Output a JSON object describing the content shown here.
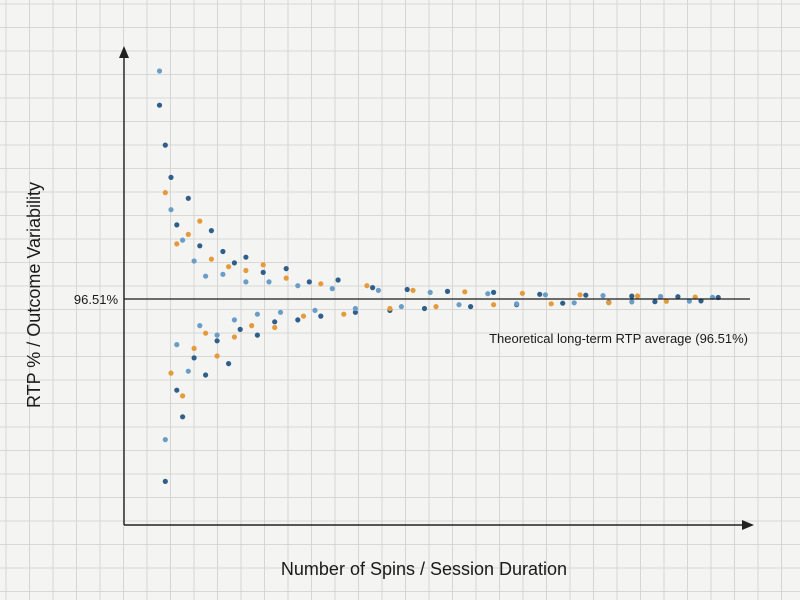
{
  "chart_data": {
    "type": "scatter",
    "title": "",
    "xlabel": "Number of Spins / Session Duration",
    "ylabel": "RTP % / Outcome Variability",
    "reference_line": {
      "y": 96.51,
      "tick_label": "96.51%",
      "annotation": "Theoretical long-term RTP average (96.51%)"
    },
    "x_tick_labels": false,
    "grid": true,
    "background": "graph-paper",
    "series_colors": [
      "#2f5f8a",
      "#e59a3c",
      "#6b9ec7"
    ],
    "pattern": "funnel: outcome spread narrows toward the long-term RTP as the number of spins increases",
    "series": [
      {
        "color": "#2f5f8a",
        "points": [
          [
            0.02,
            10.2
          ],
          [
            0.03,
            8.1
          ],
          [
            0.03,
            -9.6
          ],
          [
            0.04,
            6.4
          ],
          [
            0.05,
            -4.8
          ],
          [
            0.05,
            3.9
          ],
          [
            0.06,
            -6.2
          ],
          [
            0.07,
            5.3
          ],
          [
            0.08,
            -3.1
          ],
          [
            0.09,
            2.8
          ],
          [
            0.1,
            -4.0
          ],
          [
            0.11,
            3.6
          ],
          [
            0.12,
            -2.2
          ],
          [
            0.13,
            2.5
          ],
          [
            0.14,
            -3.4
          ],
          [
            0.15,
            1.9
          ],
          [
            0.16,
            -1.6
          ],
          [
            0.17,
            2.2
          ],
          [
            0.19,
            -1.9
          ],
          [
            0.2,
            1.4
          ],
          [
            0.22,
            -1.2
          ],
          [
            0.24,
            1.6
          ],
          [
            0.26,
            -1.1
          ],
          [
            0.28,
            0.9
          ],
          [
            0.3,
            -0.9
          ],
          [
            0.33,
            1.0
          ],
          [
            0.36,
            -0.7
          ],
          [
            0.39,
            0.6
          ],
          [
            0.42,
            -0.6
          ],
          [
            0.45,
            0.5
          ],
          [
            0.48,
            -0.5
          ],
          [
            0.52,
            0.4
          ],
          [
            0.56,
            -0.4
          ],
          [
            0.6,
            0.35
          ],
          [
            0.64,
            -0.3
          ],
          [
            0.68,
            0.25
          ],
          [
            0.72,
            -0.22
          ],
          [
            0.76,
            0.2
          ],
          [
            0.8,
            -0.18
          ],
          [
            0.84,
            0.15
          ],
          [
            0.88,
            -0.14
          ],
          [
            0.92,
            0.12
          ],
          [
            0.96,
            -0.1
          ],
          [
            0.99,
            0.08
          ]
        ]
      },
      {
        "color": "#e59a3c",
        "points": [
          [
            0.03,
            5.6
          ],
          [
            0.04,
            -3.9
          ],
          [
            0.05,
            2.9
          ],
          [
            0.06,
            -5.1
          ],
          [
            0.07,
            3.4
          ],
          [
            0.08,
            -2.6
          ],
          [
            0.09,
            4.1
          ],
          [
            0.1,
            -1.8
          ],
          [
            0.11,
            2.1
          ],
          [
            0.12,
            -3.0
          ],
          [
            0.14,
            1.7
          ],
          [
            0.15,
            -2.0
          ],
          [
            0.17,
            1.5
          ],
          [
            0.18,
            -1.4
          ],
          [
            0.2,
            1.8
          ],
          [
            0.22,
            -1.5
          ],
          [
            0.24,
            1.1
          ],
          [
            0.27,
            -0.9
          ],
          [
            0.3,
            0.8
          ],
          [
            0.34,
            -0.8
          ],
          [
            0.38,
            0.7
          ],
          [
            0.42,
            -0.5
          ],
          [
            0.46,
            0.45
          ],
          [
            0.5,
            -0.4
          ],
          [
            0.55,
            0.38
          ],
          [
            0.6,
            -0.3
          ],
          [
            0.65,
            0.3
          ],
          [
            0.7,
            -0.25
          ],
          [
            0.75,
            0.22
          ],
          [
            0.8,
            -0.2
          ],
          [
            0.85,
            0.16
          ],
          [
            0.9,
            -0.12
          ],
          [
            0.95,
            0.1
          ]
        ]
      },
      {
        "color": "#6b9ec7",
        "points": [
          [
            0.02,
            12.0
          ],
          [
            0.03,
            -7.4
          ],
          [
            0.04,
            4.7
          ],
          [
            0.05,
            -2.4
          ],
          [
            0.06,
            3.1
          ],
          [
            0.07,
            -3.8
          ],
          [
            0.08,
            2.0
          ],
          [
            0.09,
            -1.4
          ],
          [
            0.1,
            1.2
          ],
          [
            0.12,
            -1.9
          ],
          [
            0.13,
            1.3
          ],
          [
            0.15,
            -1.1
          ],
          [
            0.17,
            0.9
          ],
          [
            0.19,
            -0.8
          ],
          [
            0.21,
            0.9
          ],
          [
            0.23,
            -0.7
          ],
          [
            0.26,
            0.7
          ],
          [
            0.29,
            -0.6
          ],
          [
            0.32,
            0.55
          ],
          [
            0.36,
            -0.5
          ],
          [
            0.4,
            0.45
          ],
          [
            0.44,
            -0.4
          ],
          [
            0.49,
            0.35
          ],
          [
            0.54,
            -0.3
          ],
          [
            0.59,
            0.28
          ],
          [
            0.64,
            -0.25
          ],
          [
            0.69,
            0.22
          ],
          [
            0.74,
            -0.2
          ],
          [
            0.79,
            0.18
          ],
          [
            0.84,
            -0.15
          ],
          [
            0.89,
            0.13
          ],
          [
            0.94,
            -0.11
          ],
          [
            0.98,
            0.09
          ]
        ]
      }
    ]
  }
}
